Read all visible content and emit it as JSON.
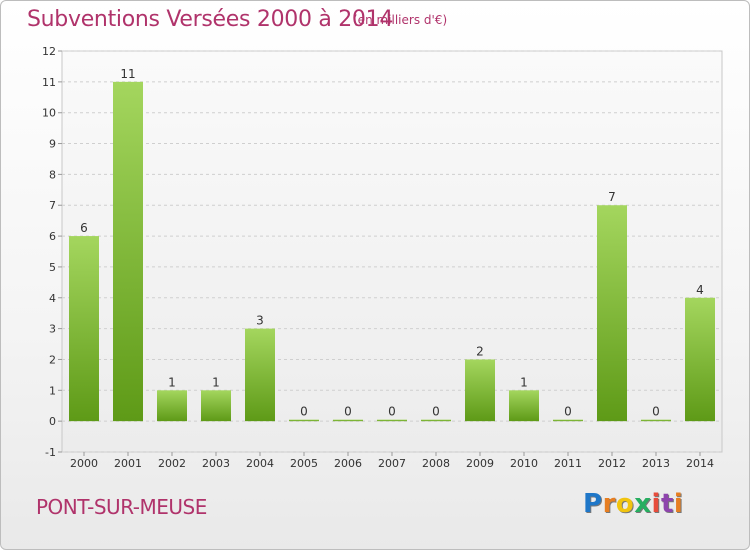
{
  "header": {
    "title": "Subventions Versées 2000 à 2014",
    "subtitle": "(en milliers d'€)"
  },
  "footer": {
    "commune": "PONT-SUR-MEUSE",
    "logo_letters": [
      {
        "ch": "P",
        "color": "#1f77c8"
      },
      {
        "ch": "r",
        "color": "#e67e22"
      },
      {
        "ch": "o",
        "color": "#f1c40f"
      },
      {
        "ch": "x",
        "color": "#27ae60"
      },
      {
        "ch": "i",
        "color": "#e74c3c"
      },
      {
        "ch": "t",
        "color": "#8e44ad"
      },
      {
        "ch": "i",
        "color": "#e67e22"
      }
    ]
  },
  "chart_data": {
    "type": "bar",
    "categories": [
      "2000",
      "2001",
      "2002",
      "2003",
      "2004",
      "2005",
      "2006",
      "2007",
      "2008",
      "2009",
      "2010",
      "2011",
      "2012",
      "2013",
      "2014"
    ],
    "values": [
      6,
      11,
      1,
      1,
      3,
      0,
      0,
      0,
      0,
      2,
      1,
      0,
      7,
      0,
      4
    ],
    "data_labels": [
      "6",
      "11",
      "1",
      "1",
      "3",
      "0",
      "0",
      "0",
      "0",
      "2",
      "1",
      "0",
      "7",
      "0",
      "4"
    ],
    "yticks": [
      "-1",
      "0",
      "1",
      "2",
      "3",
      "4",
      "5",
      "6",
      "7",
      "8",
      "9",
      "10",
      "11",
      "12"
    ],
    "ylim": [
      -1,
      12
    ],
    "grid": true,
    "bar_color": "#7cb82f"
  }
}
